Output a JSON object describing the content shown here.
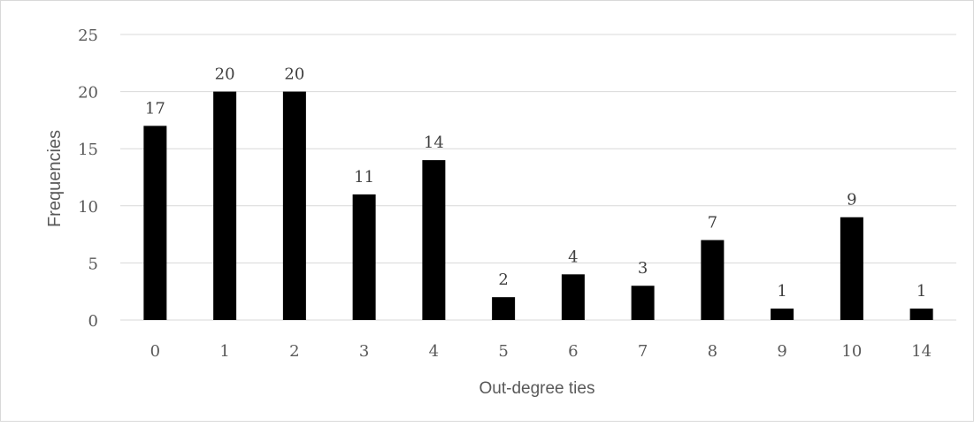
{
  "chart_data": {
    "type": "bar",
    "title": "",
    "xlabel": "Out-degree ties",
    "ylabel": "Frequencies",
    "categories": [
      "0",
      "1",
      "2",
      "3",
      "4",
      "5",
      "6",
      "7",
      "8",
      "9",
      "10",
      "14"
    ],
    "values": [
      17,
      20,
      20,
      11,
      14,
      2,
      4,
      3,
      7,
      1,
      9,
      1
    ],
    "data_labels": [
      "17",
      "20",
      "20",
      "11",
      "14",
      "2",
      "4",
      "3",
      "7",
      "1",
      "9",
      "1"
    ],
    "ylim": [
      0,
      25
    ],
    "yticks": [
      0,
      5,
      10,
      15,
      20,
      25
    ],
    "ytick_labels": [
      "0",
      "5",
      "10",
      "15",
      "20",
      "25"
    ],
    "grid": "horizontal",
    "legend": "none",
    "colors": {
      "bar": "#000000",
      "gridline": "#d9d9d9",
      "text": "#595959",
      "data_label": "#404040",
      "frame": "#d9d9d9"
    }
  }
}
